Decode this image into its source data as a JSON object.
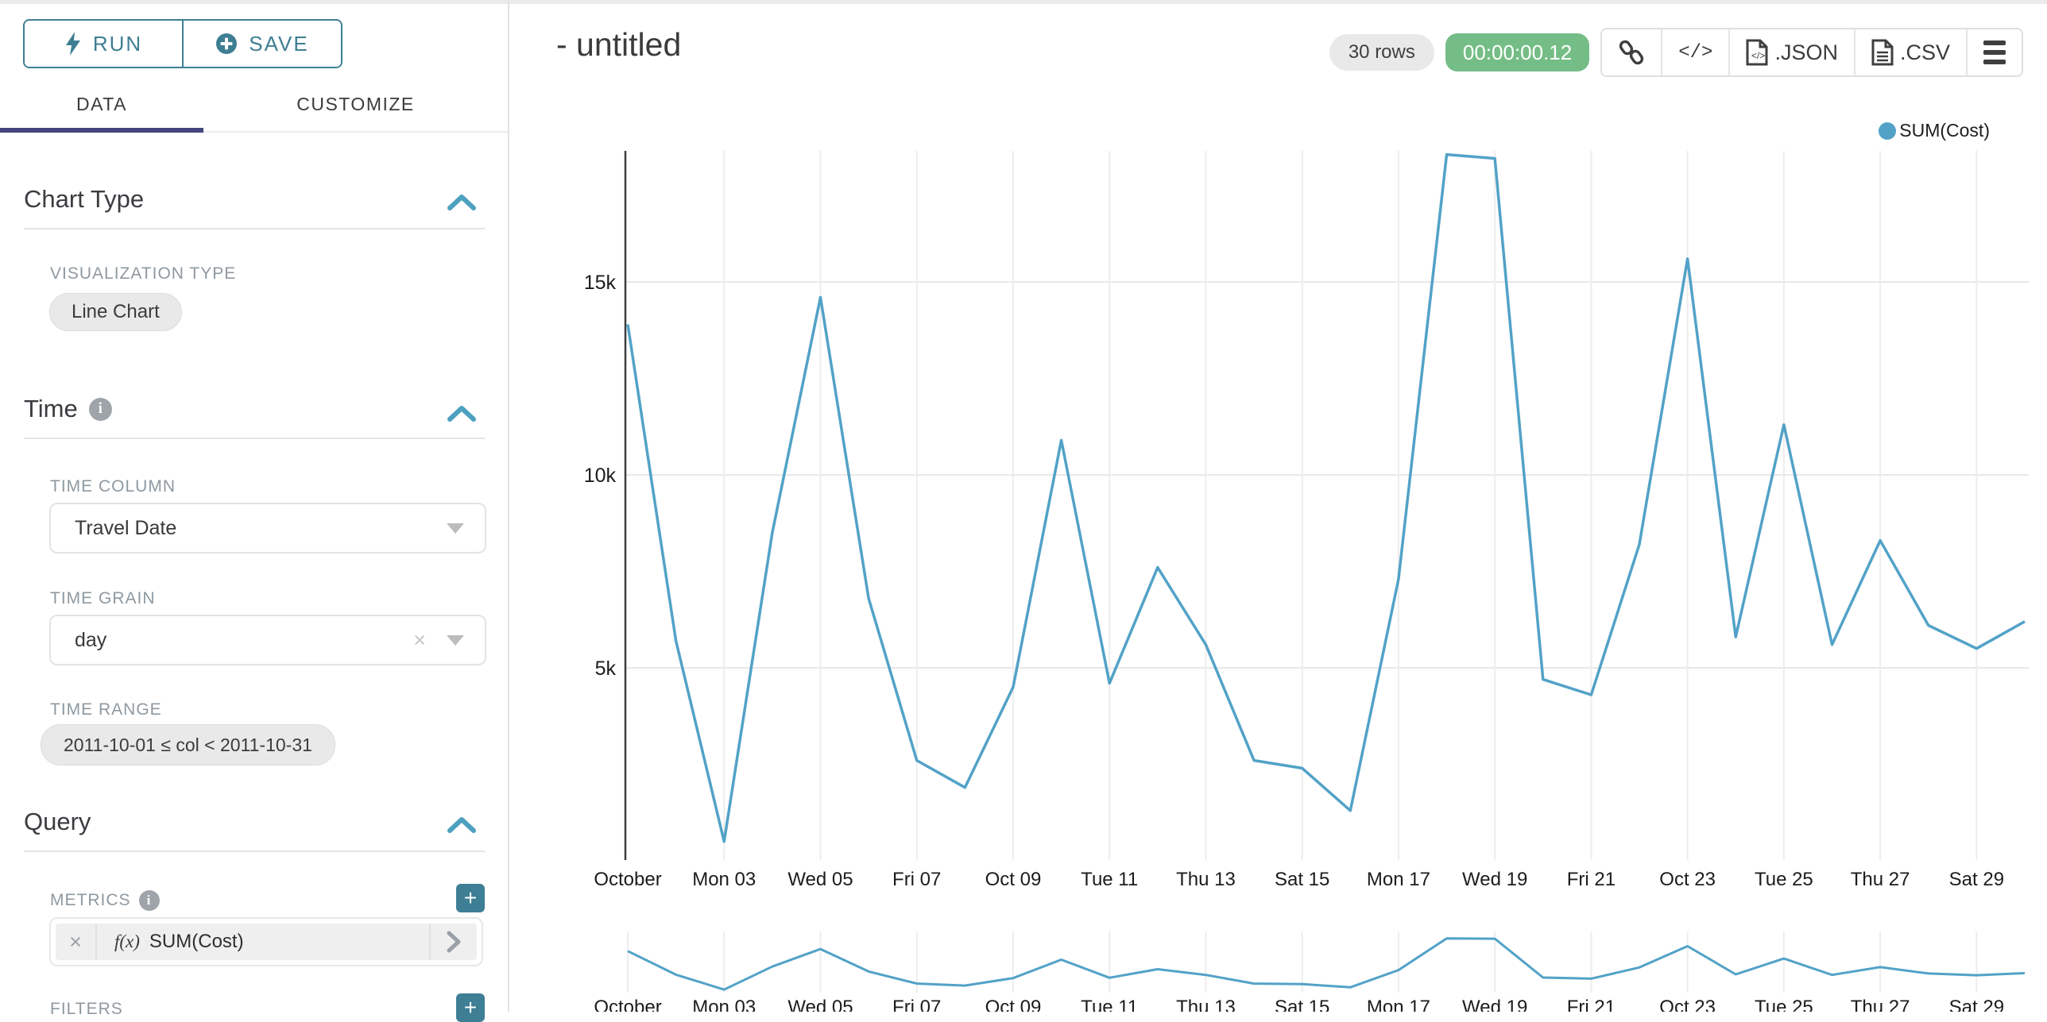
{
  "sidebar": {
    "run_label": "RUN",
    "save_label": "SAVE",
    "tabs": {
      "data": "DATA",
      "customize": "CUSTOMIZE"
    },
    "chart_type": {
      "title": "Chart Type",
      "viz_type_label": "VISUALIZATION TYPE",
      "viz_type_value": "Line Chart"
    },
    "time": {
      "title": "Time",
      "time_column_label": "TIME COLUMN",
      "time_column_value": "Travel Date",
      "time_grain_label": "TIME GRAIN",
      "time_grain_value": "day",
      "time_range_label": "TIME RANGE",
      "time_range_value": "2011-10-01 ≤ col < 2011-10-31"
    },
    "query": {
      "title": "Query",
      "metrics_label": "METRICS",
      "metric_fx": "f(x)",
      "metric_value": "SUM(Cost)",
      "filters_label": "FILTERS"
    }
  },
  "header": {
    "title": "- untitled",
    "rows_badge": "30 rows",
    "timer_badge": "00:00:00.12",
    "code_glyph": "</>",
    "json_label": ".JSON",
    "csv_label": ".CSV"
  },
  "legend": {
    "label": "SUM(Cost)",
    "color": "#52a2c7"
  },
  "colors": {
    "accent_teal": "#3e7e93",
    "tab_underline": "#45467e",
    "line": "#52a2c7",
    "timer_green": "#75bd86"
  },
  "chart_data": {
    "type": "line",
    "title": "- untitled",
    "legend_position": "top-right",
    "grid": true,
    "x_dates": [
      "2011-10-01",
      "2011-10-02",
      "2011-10-03",
      "2011-10-04",
      "2011-10-05",
      "2011-10-06",
      "2011-10-07",
      "2011-10-08",
      "2011-10-09",
      "2011-10-10",
      "2011-10-11",
      "2011-10-12",
      "2011-10-13",
      "2011-10-14",
      "2011-10-15",
      "2011-10-16",
      "2011-10-17",
      "2011-10-18",
      "2011-10-19",
      "2011-10-20",
      "2011-10-21",
      "2011-10-22",
      "2011-10-23",
      "2011-10-24",
      "2011-10-25",
      "2011-10-26",
      "2011-10-27",
      "2011-10-28",
      "2011-10-29",
      "2011-10-30"
    ],
    "series": [
      {
        "name": "SUM(Cost)",
        "color": "#52a2c7",
        "values": [
          13900,
          5700,
          500,
          8500,
          14600,
          6800,
          2600,
          1900,
          4500,
          10900,
          4600,
          7600,
          5600,
          2600,
          2400,
          1300,
          7300,
          18300,
          18200,
          4700,
          4300,
          8200,
          15600,
          5800,
          11300,
          5600,
          8300,
          6100,
          5500,
          6200
        ]
      }
    ],
    "x_tick_labels": [
      "October",
      "Mon 03",
      "Wed 05",
      "Fri 07",
      "Oct 09",
      "Tue 11",
      "Thu 13",
      "Sat 15",
      "Mon 17",
      "Wed 19",
      "Fri 21",
      "Oct 23",
      "Tue 25",
      "Thu 27",
      "Sat 29"
    ],
    "y_ticks": [
      5000,
      10000,
      15000
    ],
    "y_tick_labels": [
      "5k",
      "10k",
      "15k"
    ],
    "ylim": [
      0,
      18500
    ],
    "has_mini_context_chart": true
  }
}
